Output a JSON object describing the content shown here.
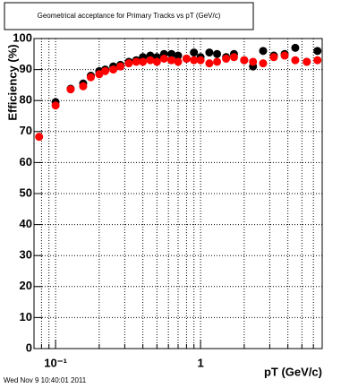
{
  "chart_data": {
    "type": "scatter",
    "title": "Geometrical acceptance for Primary Tracks vs pT (GeV/c)",
    "x_label": "pT (GeV/c)",
    "y_label": "Efficiency (%)",
    "footer": "Wed Nov  9 10:40:01 2011",
    "x_log": true,
    "grid": true,
    "xlim": [
      0.071,
      6.9
    ],
    "ylim": [
      0,
      100
    ],
    "xticks": [
      {
        "value": 0.1,
        "label": "10⁻¹"
      },
      1
    ],
    "xminor": [
      0.08,
      0.09,
      0.2,
      0.3,
      0.4,
      0.5,
      0.6,
      0.7,
      0.8,
      0.9,
      2,
      3,
      4,
      5,
      6
    ],
    "yticks": [
      0,
      10,
      20,
      30,
      40,
      50,
      60,
      70,
      80,
      90,
      100
    ],
    "x": [
      0.077,
      0.1,
      0.127,
      0.155,
      0.175,
      0.2,
      0.22,
      0.25,
      0.28,
      0.32,
      0.36,
      0.4,
      0.45,
      0.5,
      0.56,
      0.63,
      0.7,
      0.8,
      0.9,
      1.0,
      1.15,
      1.3,
      1.5,
      1.7,
      2.0,
      2.3,
      2.7,
      3.2,
      3.8,
      4.5,
      5.4,
      6.4
    ],
    "series": [
      {
        "color": "#000000",
        "values": [
          null,
          79.5,
          83.8,
          85.5,
          88,
          89.5,
          90,
          91,
          91.5,
          92.5,
          93,
          94,
          94.5,
          94,
          95,
          95,
          94.5,
          93.5,
          95.5,
          94,
          95.5,
          95,
          94,
          95,
          93,
          91,
          96,
          94.5,
          95,
          97,
          92.5,
          96
        ]
      },
      {
        "color": "#ff0000",
        "values": [
          68.3,
          78.4,
          83.6,
          84.6,
          87.5,
          88.5,
          89.5,
          90,
          91,
          92,
          92.5,
          92.5,
          93,
          92.5,
          93.5,
          93,
          92.5,
          93.5,
          93,
          93,
          92,
          92.5,
          93.5,
          94,
          93,
          92.5,
          92,
          94,
          94.5,
          93,
          92.5,
          93
        ]
      }
    ]
  }
}
